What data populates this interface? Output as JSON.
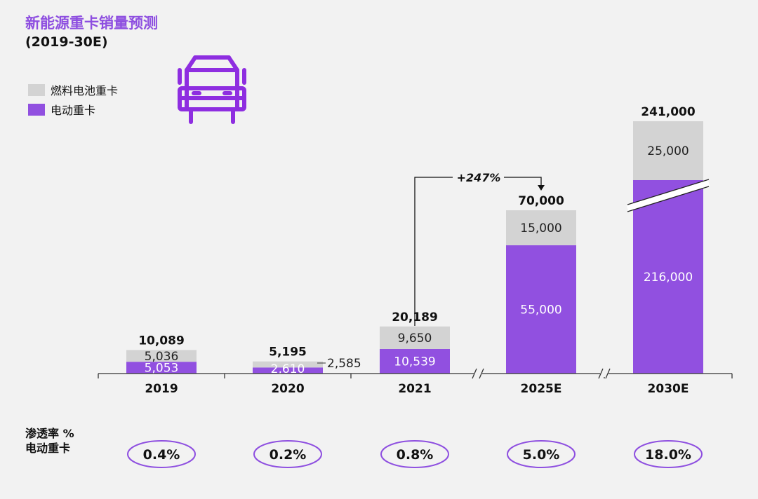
{
  "title": "新能源重卡销量预测",
  "subtitle": "(2019-30E)",
  "colors": {
    "accent": "#8e4fe0",
    "fuel_cell": "#d3d3d3",
    "electric": "#9150e0",
    "text": "#111111",
    "axis": "#333333"
  },
  "icon": "truck-icon",
  "legend": [
    {
      "key": "fuel_cell",
      "label": "燃料电池重卡"
    },
    {
      "key": "electric",
      "label": "电动重卡"
    }
  ],
  "chart_data": {
    "type": "bar",
    "stacked": true,
    "categories": [
      "2019",
      "2020",
      "2021",
      "2025E",
      "2030E"
    ],
    "series": [
      {
        "name": "电动重卡",
        "key": "electric",
        "values": [
          5053,
          2610,
          10539,
          55000,
          216000
        ],
        "labels": [
          "5,053",
          "2,610",
          "10,539",
          "55,000",
          "216,000"
        ]
      },
      {
        "name": "燃料电池重卡",
        "key": "fuel_cell",
        "values": [
          5036,
          2585,
          9650,
          15000,
          25000
        ],
        "labels": [
          "5,036",
          "2,585",
          "9,650",
          "15,000",
          "25,000"
        ]
      }
    ],
    "totals": [
      10089,
      5195,
      20189,
      70000,
      241000
    ],
    "total_labels": [
      "10,089",
      "5,195",
      "20,189",
      "70,000",
      "241,000"
    ],
    "axis_breaks": [
      "2021-2025E",
      "2025E-2030E"
    ],
    "bar_break_category": "2030E",
    "growth_annotation": {
      "from": "2021",
      "to": "2025E",
      "label": "+247%"
    },
    "ylim": [
      0,
      70000
    ],
    "xlabel": "",
    "ylabel": ""
  },
  "penetration": {
    "label_line1": "渗透率 %",
    "label_line2": "电动重卡",
    "values": [
      "0.4%",
      "0.2%",
      "0.8%",
      "5.0%",
      "18.0%"
    ]
  }
}
